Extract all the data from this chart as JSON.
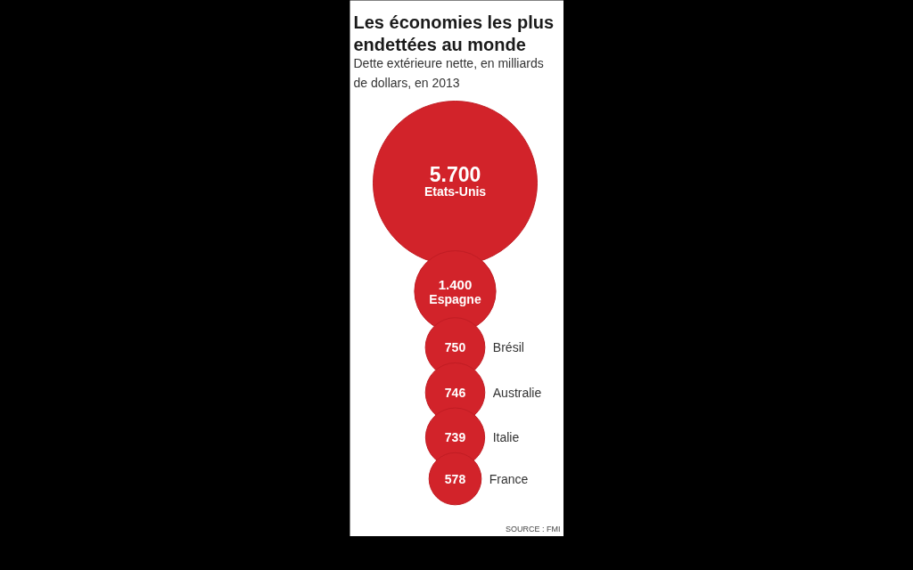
{
  "chart_data": {
    "type": "other",
    "title": "Les économies les plus endettées au monde",
    "subtitle": "Dette extérieure nette, en milliards de dollars, en 2013",
    "categories": [
      "Etats-Unis",
      "Espagne",
      "Brésil",
      "Australie",
      "Italie",
      "France"
    ],
    "values": [
      5700,
      1400,
      750,
      746,
      739,
      578
    ],
    "value_labels": [
      "5.700",
      "1.400",
      "750",
      "746",
      "739",
      "578"
    ],
    "color": "#d2232a",
    "annotations": [
      "SOURCE : FMI"
    ]
  }
}
